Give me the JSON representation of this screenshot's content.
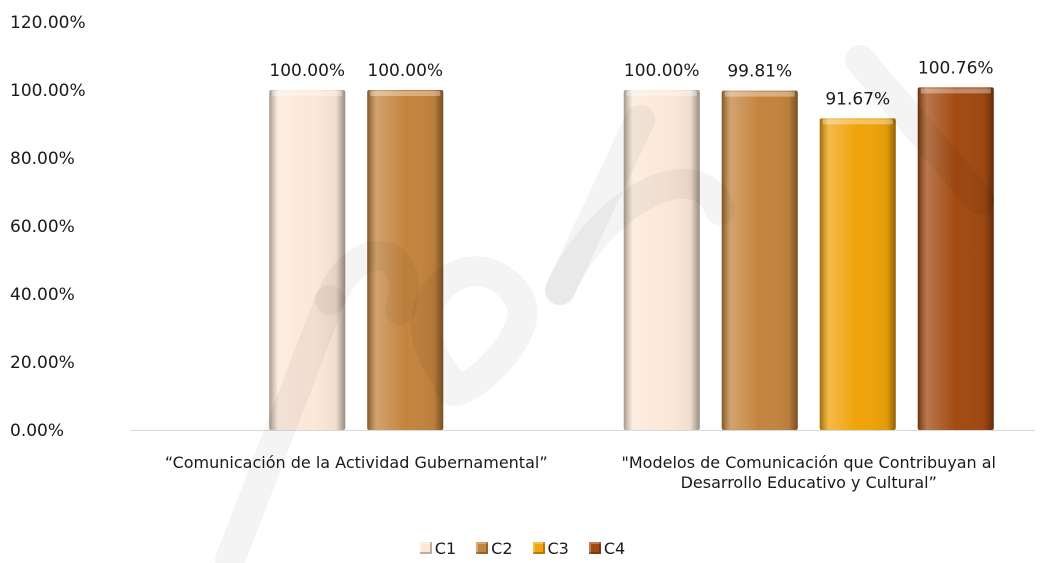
{
  "chart_data": {
    "type": "bar",
    "categories": [
      "“Comunicación de la Actividad Gubernamental”",
      "\"Modelos de Comunicación que Contribuyan al Desarrollo Educativo y Cultural”"
    ],
    "category_lines": [
      [
        "“Comunicación de la Actividad Gubernamental”"
      ],
      [
        "\"Modelos de Comunicación que Contribuyan al",
        "Desarrollo Educativo y Cultural”"
      ]
    ],
    "series": [
      {
        "name": "C1",
        "color": "#fbe8d8",
        "values": [
          100.0,
          100.0
        ],
        "labels": [
          "100.00%",
          "100.00%"
        ]
      },
      {
        "name": "C2",
        "color": "#c4843e",
        "values": [
          100.0,
          99.81
        ],
        "labels": [
          "100.00%",
          "99.81%"
        ]
      },
      {
        "name": "C3",
        "color": "#f0a30a",
        "values": [
          null,
          91.67
        ],
        "labels": [
          null,
          "91.67%"
        ]
      },
      {
        "name": "C4",
        "color": "#a24a12",
        "values": [
          null,
          100.76
        ],
        "labels": [
          null,
          "100.76%"
        ]
      }
    ],
    "y_ticks": [
      "0.00%",
      "20.00%",
      "40.00%",
      "60.00%",
      "80.00%",
      "100.00%",
      "120.00%"
    ],
    "ylim": [
      0,
      120
    ],
    "grid": false,
    "legend_position": "bottom",
    "title": "",
    "xlabel": "",
    "ylabel": ""
  }
}
